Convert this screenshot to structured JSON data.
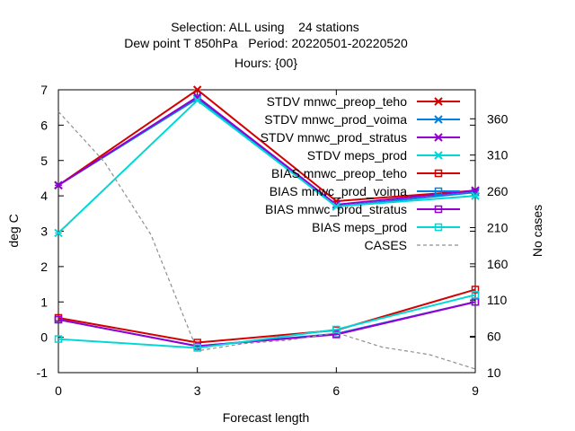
{
  "chart_data": {
    "type": "line",
    "title_lines": [
      "Selection: ALL using    24 stations",
      "Dew point T 850hPa   Period: 20220501-20220520",
      "Hours: {00}"
    ],
    "xlabel": "Forecast length",
    "ylabel": "deg C",
    "y2label": "No cases",
    "x": [
      0,
      3,
      6,
      9
    ],
    "xlim": [
      0,
      9
    ],
    "xticks": [
      "0",
      "3",
      "6",
      "9"
    ],
    "ylim": [
      -1,
      7
    ],
    "yticks": [
      "-1",
      "0",
      "1",
      "2",
      "3",
      "4",
      "5",
      "6",
      "7"
    ],
    "y2lim": [
      10,
      400
    ],
    "y2ticks": [
      "10",
      "60",
      "110",
      "160",
      "210",
      "260",
      "310",
      "360"
    ],
    "grid": false,
    "legend_position": "top-right",
    "series": [
      {
        "name": "STDV mnwc_preop_teho",
        "values": [
          4.3,
          7.0,
          3.85,
          4.15
        ],
        "color": "#d40000",
        "marker": "x-star",
        "axis": "y"
      },
      {
        "name": "STDV mnwc_prod_voima",
        "values": [
          4.3,
          6.75,
          3.7,
          4.1
        ],
        "color": "#0080e0",
        "marker": "x-star",
        "axis": "y"
      },
      {
        "name": "STDV mnwc_prod_stratus",
        "values": [
          4.3,
          6.8,
          3.75,
          4.15
        ],
        "color": "#9400d3",
        "marker": "x-star",
        "axis": "y"
      },
      {
        "name": "STDV meps_prod",
        "values": [
          2.95,
          6.7,
          3.7,
          4.0
        ],
        "color": "#00d8d8",
        "marker": "x-star",
        "axis": "y"
      },
      {
        "name": "BIAS mnwc_preop_teho",
        "values": [
          0.55,
          -0.15,
          0.2,
          1.35
        ],
        "color": "#d40000",
        "marker": "open-square",
        "axis": "y"
      },
      {
        "name": "BIAS mnwc_prod_voima",
        "values": [
          0.5,
          -0.25,
          0.1,
          1.0
        ],
        "color": "#0080e0",
        "marker": "open-square",
        "axis": "y"
      },
      {
        "name": "BIAS mnwc_prod_stratus",
        "values": [
          0.5,
          -0.25,
          0.08,
          1.0
        ],
        "color": "#9400d3",
        "marker": "open-square",
        "axis": "y"
      },
      {
        "name": "BIAS meps_prod",
        "values": [
          -0.05,
          -0.3,
          0.22,
          1.2
        ],
        "color": "#00d8d8",
        "marker": "open-square",
        "axis": "y"
      },
      {
        "name": "CASES",
        "x": [
          0,
          1,
          2,
          3,
          4,
          5,
          6,
          7,
          8,
          9
        ],
        "values": [
          370,
          300,
          200,
          40,
          50,
          55,
          65,
          45,
          35,
          15
        ],
        "color": "#909090",
        "dash": true,
        "axis": "y2"
      }
    ]
  }
}
